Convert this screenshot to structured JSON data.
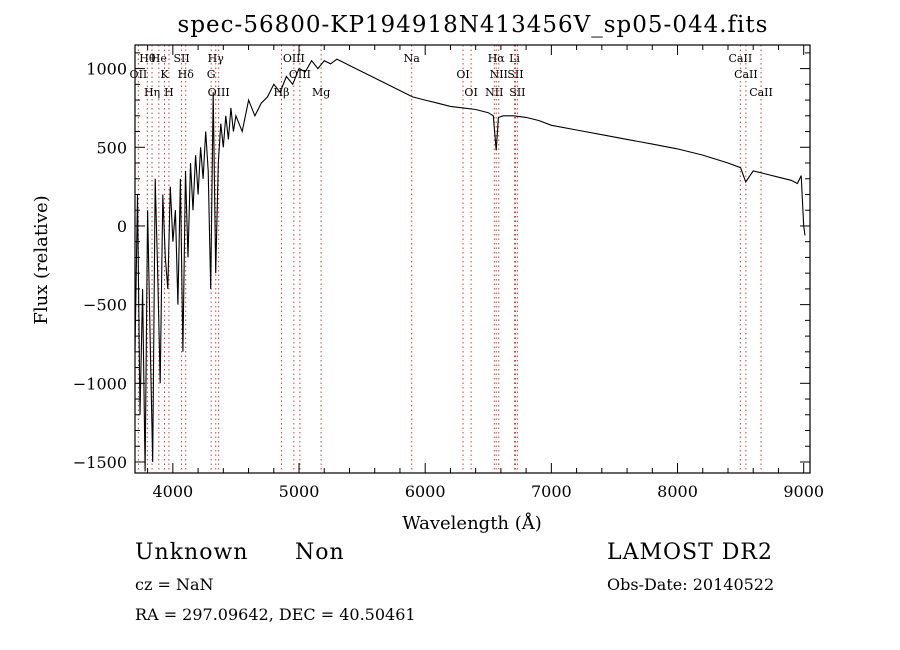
{
  "chart_data": {
    "type": "line",
    "title": "spec-56800-KP194918N413456V_sp05-044.fits",
    "xlabel": "Wavelength (Å)",
    "ylabel": "Flux (relative)",
    "xlim": [
      3700,
      9050
    ],
    "ylim": [
      -1570,
      1150
    ],
    "xticks": [
      4000,
      5000,
      6000,
      7000,
      8000,
      9000
    ],
    "yticks": [
      -1500,
      -1000,
      -500,
      0,
      500,
      1000
    ],
    "grid": false,
    "series": [
      {
        "x": [
          3700,
          3720,
          3740,
          3760,
          3780,
          3800,
          3820,
          3840,
          3860,
          3880,
          3900,
          3920,
          3940,
          3960,
          3980,
          4000,
          4020,
          4040,
          4060,
          4080,
          4100,
          4120,
          4140,
          4160,
          4180,
          4200,
          4220,
          4240,
          4260,
          4280,
          4300,
          4320,
          4340,
          4360,
          4380,
          4400,
          4420,
          4440,
          4460,
          4480,
          4500,
          4550,
          4600,
          4650,
          4700,
          4750,
          4800,
          4850,
          4900,
          4950,
          5000,
          5050,
          5100,
          5150,
          5200,
          5250,
          5300,
          5350,
          5400,
          5450,
          5500,
          5600,
          5700,
          5800,
          5900,
          6000,
          6100,
          6200,
          6300,
          6400,
          6500,
          6540,
          6563,
          6580,
          6620,
          6700,
          6800,
          6900,
          7000,
          7200,
          7400,
          7600,
          7800,
          8000,
          8200,
          8400,
          8500,
          8540,
          8600,
          8700,
          8800,
          8900,
          8950,
          8980,
          9000,
          9010
        ],
        "y": [
          -800,
          200,
          -1200,
          -400,
          -1560,
          100,
          -700,
          -1500,
          300,
          -300,
          -1000,
          200,
          -200,
          -400,
          250,
          -100,
          100,
          -500,
          300,
          -800,
          350,
          -200,
          400,
          100,
          450,
          200,
          500,
          300,
          600,
          350,
          -400,
          850,
          -300,
          400,
          650,
          500,
          700,
          550,
          750,
          600,
          700,
          600,
          800,
          700,
          780,
          820,
          900,
          850,
          950,
          900,
          1000,
          980,
          1050,
          1000,
          1050,
          1030,
          1060,
          1040,
          1020,
          1000,
          980,
          940,
          900,
          860,
          820,
          800,
          780,
          760,
          750,
          740,
          720,
          700,
          480,
          690,
          700,
          700,
          690,
          670,
          640,
          610,
          580,
          550,
          520,
          490,
          450,
          400,
          370,
          280,
          350,
          330,
          310,
          290,
          270,
          320,
          0,
          -60
        ]
      }
    ],
    "line_markers": [
      {
        "label": "Hθ",
        "x": 3798
      },
      {
        "label": "OII",
        "x": 3727
      },
      {
        "label": "Hη",
        "x": 3835
      },
      {
        "label": "He",
        "x": 3889
      },
      {
        "label": "K",
        "x": 3934
      },
      {
        "label": "H",
        "x": 3969
      },
      {
        "label": "SII",
        "x": 4069
      },
      {
        "label": "Hδ",
        "x": 4102
      },
      {
        "label": "OIII",
        "x": 4363
      },
      {
        "label": "Hγ",
        "x": 4340
      },
      {
        "label": "G",
        "x": 4304
      },
      {
        "label": "Hβ",
        "x": 4861
      },
      {
        "label": "OIII",
        "x": 4959
      },
      {
        "label": "OIII",
        "x": 5007
      },
      {
        "label": "Mg",
        "x": 5175
      },
      {
        "label": "Na",
        "x": 5893
      },
      {
        "label": "OI",
        "x": 6300
      },
      {
        "label": "OI",
        "x": 6364
      },
      {
        "label": "Hα",
        "x": 6563
      },
      {
        "label": "NII",
        "x": 6583
      },
      {
        "label": "NII",
        "x": 6548
      },
      {
        "label": "Li",
        "x": 6708
      },
      {
        "label": "SII",
        "x": 6716
      },
      {
        "label": "SII",
        "x": 6731
      },
      {
        "label": "CaII",
        "x": 8498
      },
      {
        "label": "CaII",
        "x": 8542
      },
      {
        "label": "CaII",
        "x": 8662
      }
    ]
  },
  "info": {
    "class": "Unknown",
    "subclass": "Non",
    "survey": "LAMOST DR2",
    "cz": "cz = NaN",
    "obs_date": "Obs-Date: 20140522",
    "radec": "RA = 297.09642, DEC =  40.50461"
  }
}
